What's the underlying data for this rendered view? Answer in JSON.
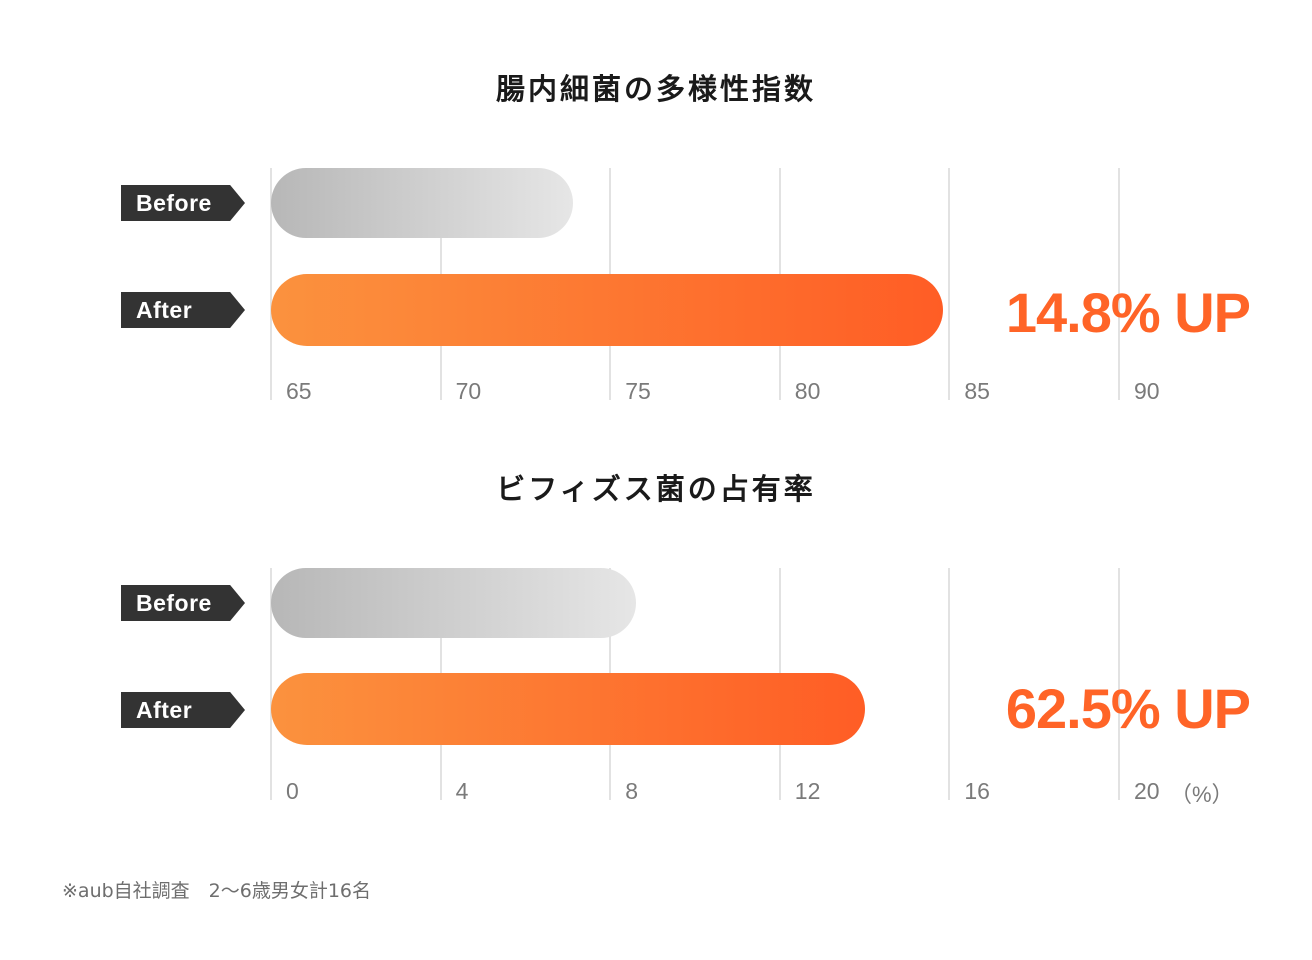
{
  "chart_data": [
    {
      "type": "bar",
      "orientation": "horizontal",
      "title": "腸内細菌の多様性指数",
      "categories": [
        "Before",
        "After"
      ],
      "values": [
        73.9,
        84.8
      ],
      "xlim": [
        65,
        90
      ],
      "ticks": [
        "65",
        "70",
        "75",
        "80",
        "85",
        "90"
      ],
      "tick_values": [
        65,
        70,
        75,
        80,
        85,
        90
      ],
      "unit_label": "",
      "annotation": "14.8% UP",
      "grid": true,
      "colors": {
        "before": "#cfcfcf",
        "after": "#ff7a33"
      }
    },
    {
      "type": "bar",
      "orientation": "horizontal",
      "title": "ビフィズス菌の占有率",
      "categories": [
        "Before",
        "After"
      ],
      "values": [
        8.6,
        14.0
      ],
      "xlim": [
        0,
        20
      ],
      "ticks": [
        "0",
        "4",
        "8",
        "12",
        "16",
        "20"
      ],
      "tick_values": [
        0,
        4,
        8,
        12,
        16,
        20
      ],
      "unit_label": "（%）",
      "annotation": "62.5% UP",
      "grid": true,
      "colors": {
        "before": "#cfcfcf",
        "after": "#ff7a33"
      }
    }
  ],
  "footnote": "※aub自社調査　2〜6歳男女計16名"
}
